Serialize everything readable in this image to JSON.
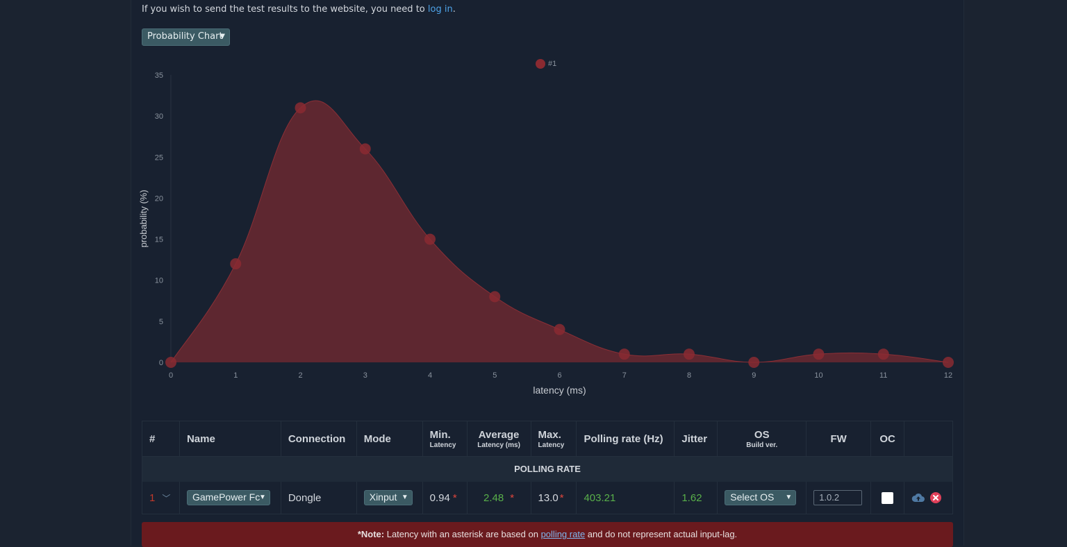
{
  "notice": {
    "text": "If you wish to send the test results to the website, you need to",
    "link": "log in",
    "end": "."
  },
  "chart_select": {
    "value": "Probability Chart"
  },
  "chart_data": {
    "type": "area",
    "xlabel": "latency (ms)",
    "ylabel": "probability (%)",
    "xlim": [
      0,
      12
    ],
    "ylim": [
      0,
      35
    ],
    "x_ticks": [
      "0",
      "1",
      "2",
      "3",
      "4",
      "5",
      "6",
      "7",
      "8",
      "9",
      "10",
      "11",
      "12"
    ],
    "y_ticks": [
      "0",
      "5",
      "10",
      "15",
      "20",
      "25",
      "30",
      "35"
    ],
    "series": [
      {
        "name": "#1",
        "color": "#7a2a30",
        "x": [
          0,
          1,
          2,
          3,
          4,
          5,
          6,
          7,
          8,
          9,
          10,
          11,
          12
        ],
        "values": [
          0,
          12,
          31,
          26,
          15,
          8,
          4,
          1,
          1,
          0,
          1,
          1,
          0
        ]
      }
    ],
    "legend_position": "top-center",
    "grid": false
  },
  "table": {
    "headers": {
      "num": "#",
      "name": "Name",
      "connection": "Connection",
      "mode": "Mode",
      "min": "Min.",
      "min_sub": "Latency",
      "avg": "Average",
      "avg_sub": "Latency (ms)",
      "max": "Max.",
      "max_sub": "Latency",
      "polling": "Polling rate (Hz)",
      "jitter": "Jitter",
      "os": "OS",
      "os_sub": "Build ver.",
      "fw": "FW",
      "oc": "OC"
    },
    "group_label": "POLLING RATE",
    "row": {
      "num": "1",
      "name": "GamePower Fc",
      "connection": "Dongle",
      "mode": "Xinput",
      "min": "0.94",
      "avg": "2.48",
      "max": "13.0",
      "asterisk": "*",
      "polling": "403.21",
      "jitter": "1.62",
      "os": "Select OS",
      "fw": "1.0.2"
    }
  },
  "note": {
    "bold": "*Note:",
    "text1": " Latency with an asterisk are based on ",
    "link": "polling rate",
    "text2": " and do not represent actual input-lag."
  }
}
